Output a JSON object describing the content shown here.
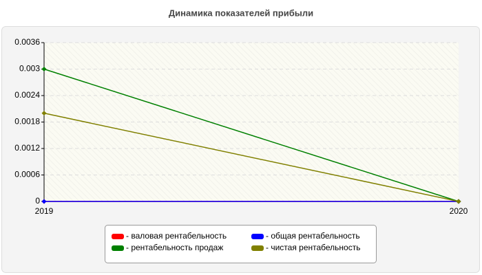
{
  "chart_data": {
    "type": "line",
    "title": "Динамика показателей прибыли",
    "categories": [
      "2019",
      "2020"
    ],
    "series": [
      {
        "name": "- валовая рентабельность",
        "color": "#ff0000",
        "values": [
          0,
          0
        ]
      },
      {
        "name": "- общая рентабельность",
        "color": "#0000ff",
        "values": [
          0,
          0
        ]
      },
      {
        "name": "- рентабельность продаж",
        "color": "#008000",
        "values": [
          0.003,
          0
        ]
      },
      {
        "name": "- чистая рентабельность",
        "color": "#808000",
        "values": [
          0.002,
          0
        ]
      }
    ],
    "ylim": [
      0,
      0.0036
    ],
    "yticks": [
      0,
      0.0006,
      0.0012,
      0.0018,
      0.0024,
      0.003,
      0.0036
    ],
    "grid": true
  }
}
